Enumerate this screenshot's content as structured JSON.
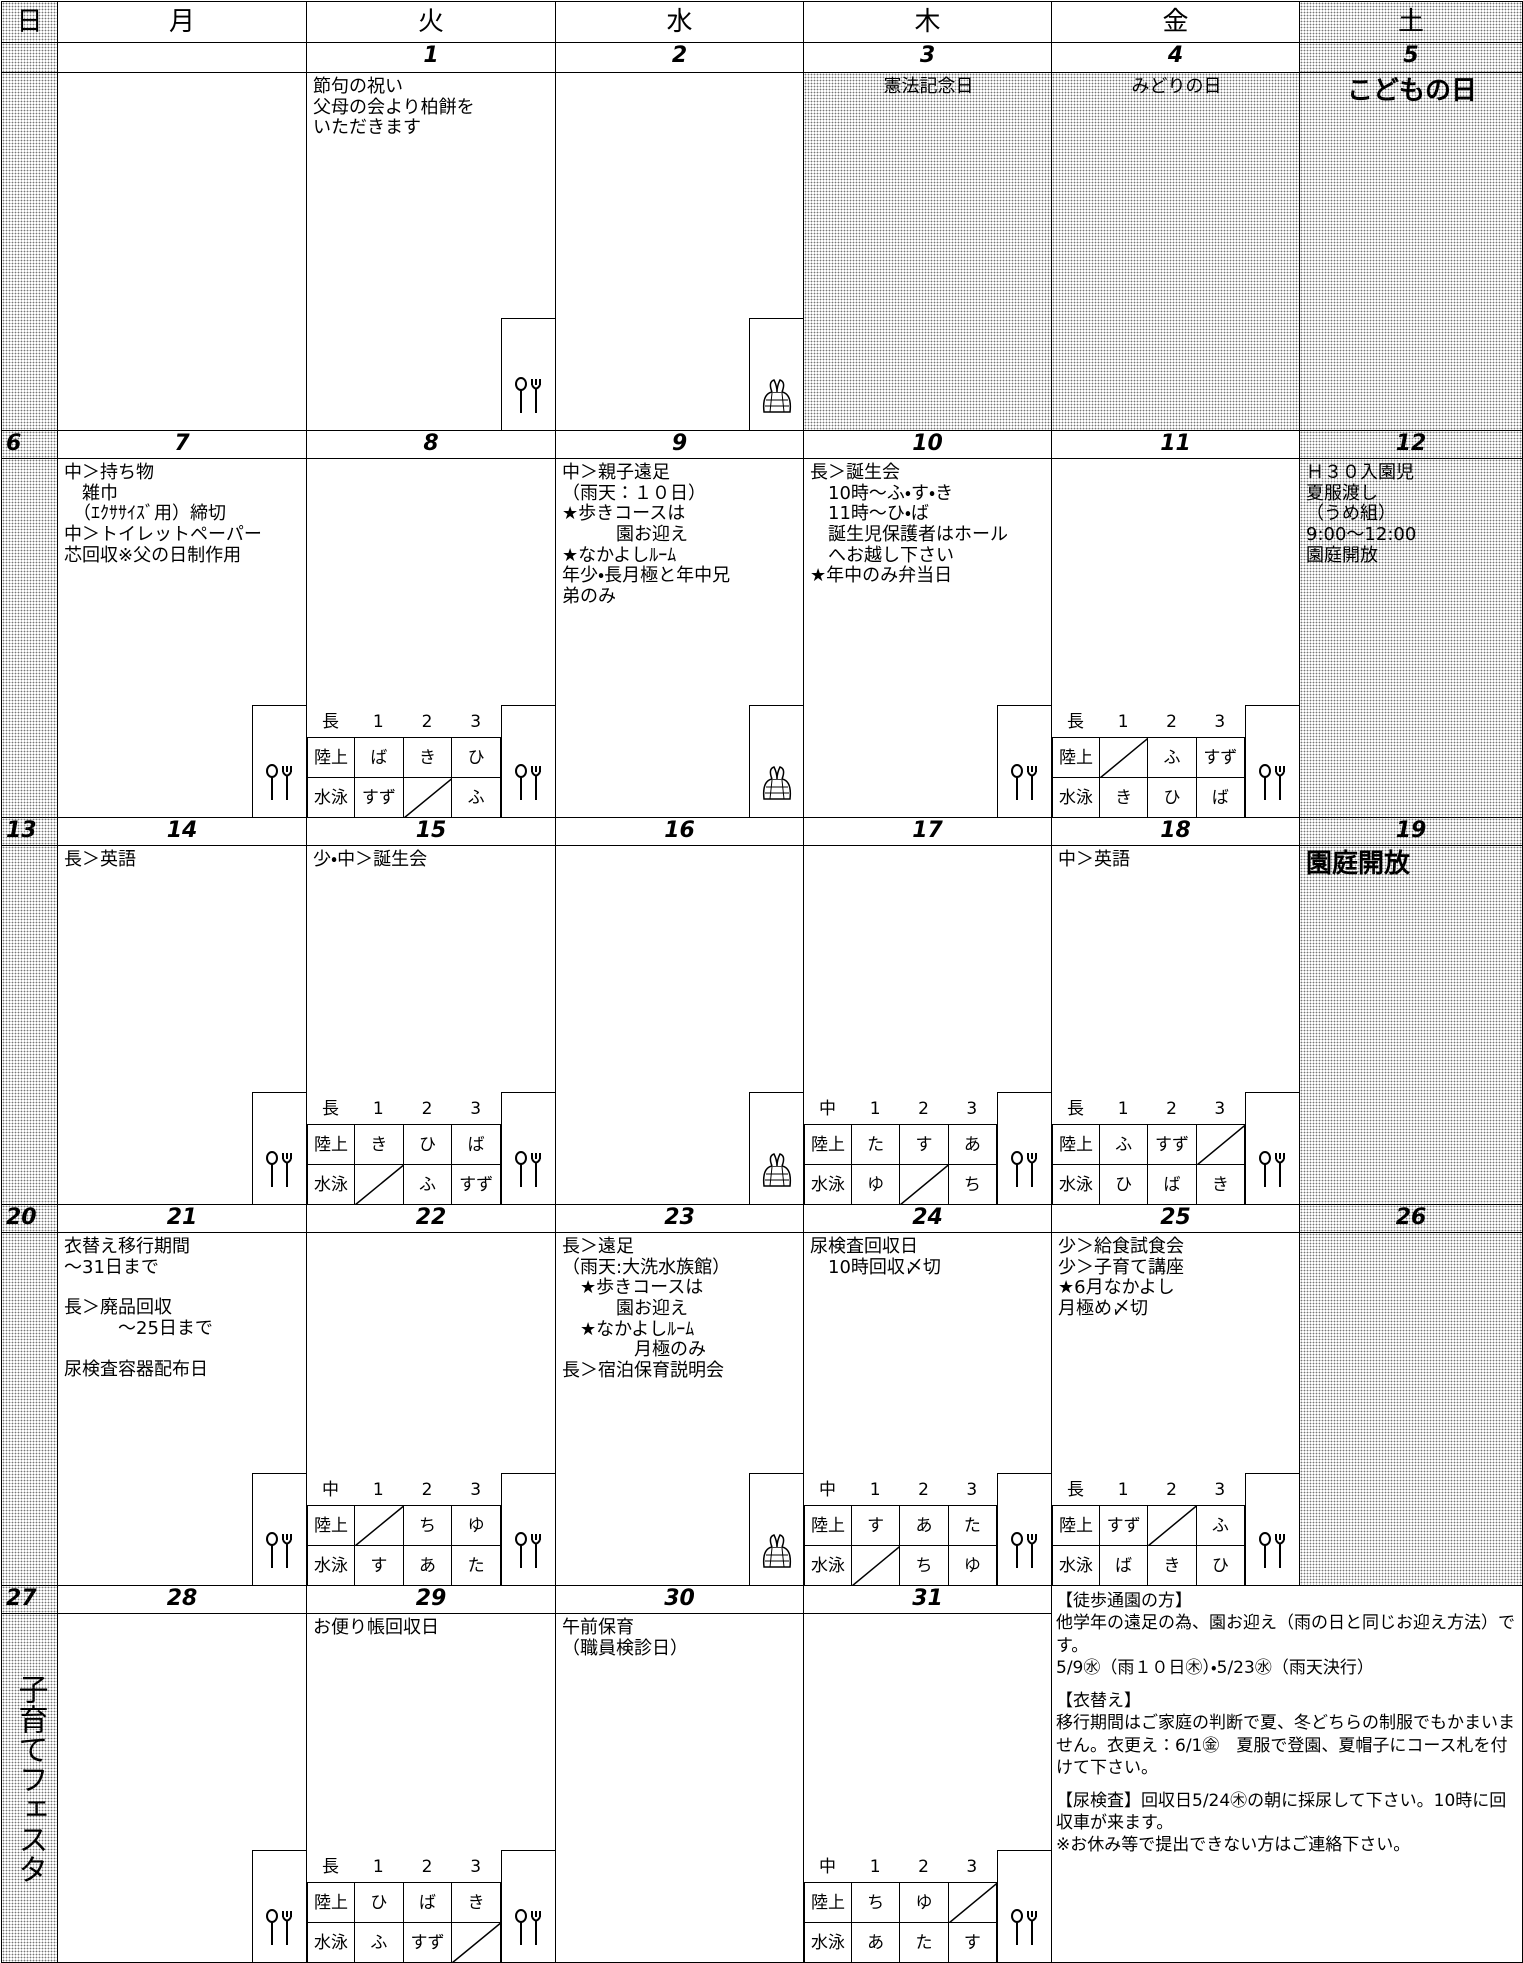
{
  "header": {
    "days": [
      "日",
      "月",
      "火",
      "水",
      "木",
      "金",
      "土"
    ]
  },
  "weeks": [
    {
      "sunday": {
        "date": null
      },
      "days": [
        {
          "date": null,
          "notes": []
        },
        {
          "date": "1",
          "notes": [
            "節句の祝い\n父母の会より柏餅を\nいただきます"
          ],
          "icon": "fork"
        },
        {
          "date": "2",
          "notes": [],
          "icon": "bag"
        },
        {
          "date": "3",
          "notes": [
            "憲法記念日"
          ],
          "holiday": true
        },
        {
          "date": "4",
          "notes": [
            "みどりの日"
          ],
          "holiday": true
        },
        {
          "date": "5",
          "notes": [
            "こどもの日"
          ],
          "holiday": true,
          "large": true
        }
      ]
    },
    {
      "sunday": {
        "date": "6"
      },
      "days": [
        {
          "date": "7",
          "notes": [
            "中＞持ち物\n　雑巾\n　（ｴｸｻｻｲｽﾞ用）締切\n中＞トイレットペーパー\n芯回収※父の日制作用"
          ],
          "icon": "fork"
        },
        {
          "date": "8",
          "notes": [],
          "duty": {
            "head": [
              "長",
              "1",
              "2",
              "3"
            ],
            "rows": [
              [
                "陸上",
                "ば",
                "き",
                "ひ"
              ],
              [
                "水泳",
                "すず",
                null,
                "ふ"
              ]
            ]
          },
          "icon": "fork"
        },
        {
          "date": "9",
          "notes": [
            "中＞親子遠足\n（雨天：１０日）\n★歩きコースは\n　　　園お迎え\n★なかよしﾙｰﾑ\n年少・長月極と年中兄\n弟のみ"
          ],
          "icon": "bag"
        },
        {
          "date": "10",
          "notes": [
            "長＞誕生会\n　10時～ふ・す・き\n　11時～ひ・ば\n　誕生児保護者はホール\n　へお越し下さい\n★年中のみ弁当日"
          ],
          "icon": "fork"
        },
        {
          "date": "11",
          "notes": [],
          "duty": {
            "head": [
              "長",
              "1",
              "2",
              "3"
            ],
            "rows": [
              [
                "陸上",
                null,
                "ふ",
                "すず"
              ],
              [
                "水泳",
                "き",
                "ひ",
                "ば"
              ]
            ]
          },
          "icon": "fork"
        },
        {
          "date": "12",
          "notes": [
            "Ｈ３０入園児\n夏服渡し\n（うめ組）\n9:00～12:00\n園庭開放"
          ]
        }
      ]
    },
    {
      "sunday": {
        "date": "13"
      },
      "days": [
        {
          "date": "14",
          "notes": [
            "長＞英語"
          ],
          "icon": "fork"
        },
        {
          "date": "15",
          "notes": [
            "少・中＞誕生会"
          ],
          "duty": {
            "head": [
              "長",
              "1",
              "2",
              "3"
            ],
            "rows": [
              [
                "陸上",
                "き",
                "ひ",
                "ば"
              ],
              [
                "水泳",
                null,
                "ふ",
                "すず"
              ]
            ]
          },
          "icon": "fork"
        },
        {
          "date": "16",
          "notes": [],
          "icon": "bag"
        },
        {
          "date": "17",
          "notes": [],
          "duty": {
            "head": [
              "中",
              "1",
              "2",
              "3"
            ],
            "rows": [
              [
                "陸上",
                "た",
                "す",
                "あ"
              ],
              [
                "水泳",
                "ゆ",
                null,
                "ち"
              ]
            ]
          },
          "icon": "fork"
        },
        {
          "date": "18",
          "notes": [
            "中＞英語"
          ],
          "duty": {
            "head": [
              "長",
              "1",
              "2",
              "3"
            ],
            "rows": [
              [
                "陸上",
                "ふ",
                "すず",
                null
              ],
              [
                "水泳",
                "ひ",
                "ば",
                "き"
              ]
            ]
          },
          "icon": "fork"
        },
        {
          "date": "19",
          "notes": [
            "園庭開放"
          ],
          "large": true
        }
      ]
    },
    {
      "sunday": {
        "date": "20"
      },
      "days": [
        {
          "date": "21",
          "notes": [
            "衣替え移行期間\n～31日まで",
            "長＞廃品回収\n　　　～25日まで",
            "尿検査容器配布日"
          ],
          "icon": "fork"
        },
        {
          "date": "22",
          "notes": [],
          "duty": {
            "head": [
              "中",
              "1",
              "2",
              "3"
            ],
            "rows": [
              [
                "陸上",
                null,
                "ち",
                "ゆ"
              ],
              [
                "水泳",
                "す",
                "あ",
                "た"
              ]
            ]
          },
          "icon": "fork"
        },
        {
          "date": "23",
          "notes": [
            "長＞遠足\n（雨天:大洗水族館）\n　★歩きコースは\n　　　園お迎え\n　★なかよしﾙｰﾑ\n　　　　月極のみ\n長＞宿泊保育説明会"
          ],
          "icon": "bag"
        },
        {
          "date": "24",
          "notes": [
            "尿検査回収日\n　10時回収〆切"
          ],
          "duty": {
            "head": [
              "中",
              "1",
              "2",
              "3"
            ],
            "rows": [
              [
                "陸上",
                "す",
                "あ",
                "た"
              ],
              [
                "水泳",
                null,
                "ち",
                "ゆ"
              ]
            ]
          },
          "icon": "fork"
        },
        {
          "date": "25",
          "notes": [
            "少＞給食試食会\n少＞子育て講座\n★6月なかよし\n月極め〆切"
          ],
          "duty": {
            "head": [
              "長",
              "1",
              "2",
              "3"
            ],
            "rows": [
              [
                "陸上",
                "すず",
                null,
                "ふ"
              ],
              [
                "水泳",
                "ば",
                "き",
                "ひ"
              ]
            ]
          },
          "icon": "fork"
        },
        {
          "date": "26",
          "notes": []
        }
      ]
    },
    {
      "sunday": {
        "date": "27",
        "note": "子育てフェスタ"
      },
      "days": [
        {
          "date": "28",
          "notes": [],
          "icon": "fork"
        },
        {
          "date": "29",
          "notes": [
            "お便り帳回収日"
          ],
          "duty": {
            "head": [
              "長",
              "1",
              "2",
              "3"
            ],
            "rows": [
              [
                "陸上",
                "ひ",
                "ば",
                "き"
              ],
              [
                "水泳",
                "ふ",
                "すず",
                null
              ]
            ]
          },
          "icon": "fork"
        },
        {
          "date": "30",
          "notes": [
            "午前保育\n（職員検診日）"
          ]
        },
        {
          "date": "31",
          "notes": [],
          "duty": {
            "head": [
              "中",
              "1",
              "2",
              "3"
            ],
            "rows": [
              [
                "陸上",
                "ち",
                "ゆ",
                null
              ],
              [
                "水泳",
                "あ",
                "た",
                "す"
              ]
            ]
          },
          "icon": "fork"
        }
      ],
      "notice": [
        "【徒歩通園の方】\n他学年の遠足の為、園お迎え（雨の日と同じお迎え方法）です。\n5/9㊌（雨１０日㊍）・5/23㊌（雨天決行）",
        "【衣替え】\n移行期間はご家庭の判断で夏、冬どちらの制服でもかまいません。衣更え：6/1㊎　夏服で登園、夏帽子にコース札を付けて下さい。",
        "【尿検査】回収日5/24㊍の朝に採尿して下さい。10時に回収車が来ます。\n※お休み等で提出できない方はご連絡下さい。"
      ]
    }
  ]
}
